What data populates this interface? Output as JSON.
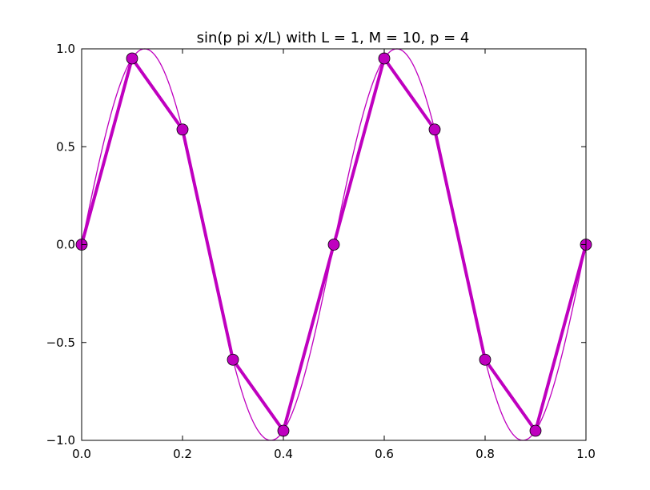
{
  "chart_data": {
    "type": "line",
    "title": "sin(p pi x/L) with L = 1, M = 10, p = 4",
    "xlabel": "",
    "ylabel": "",
    "xlim": [
      0.0,
      1.0
    ],
    "ylim": [
      -1.0,
      1.0
    ],
    "grid": false,
    "x_ticks": [
      "0.0",
      "0.2",
      "0.4",
      "0.6",
      "0.8",
      "1.0"
    ],
    "y_ticks": [
      "1.0",
      "0.5",
      "0.0",
      "−0.5",
      "−1.0"
    ],
    "series": [
      {
        "style": "thin-continuous",
        "function": "sin(4*pi*x)",
        "color": "#bf00bf"
      },
      {
        "style": "thick-with-markers",
        "color": "#bf00bf",
        "x": [
          0.0,
          0.1,
          0.2,
          0.3,
          0.4,
          0.5,
          0.6,
          0.7,
          0.8,
          0.9,
          1.0
        ],
        "values": [
          0.0,
          0.951,
          0.588,
          -0.588,
          -0.951,
          0.0,
          0.951,
          0.588,
          -0.588,
          -0.951,
          0.0
        ]
      }
    ]
  }
}
